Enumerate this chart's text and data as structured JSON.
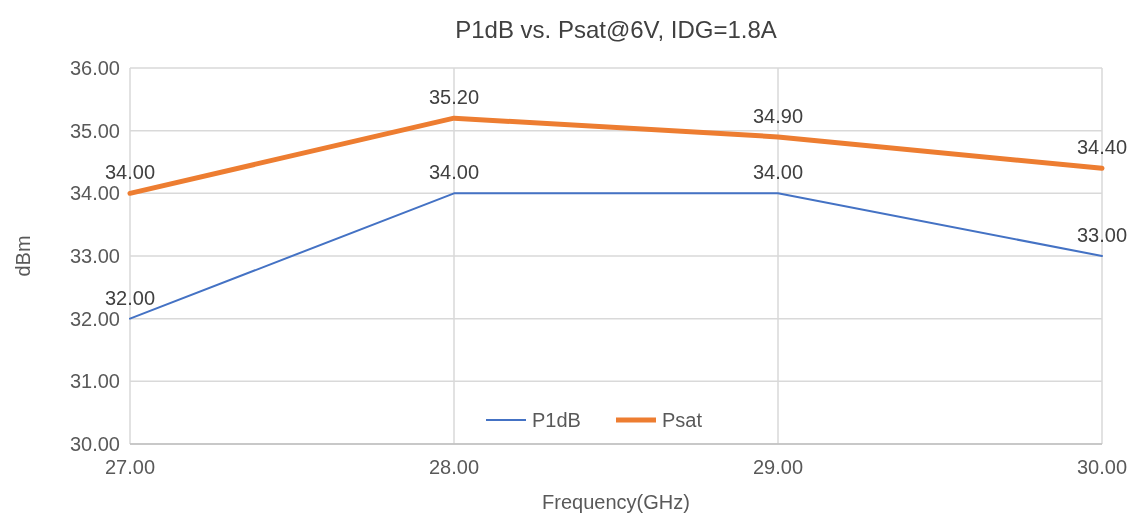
{
  "chart_data": {
    "type": "line",
    "title": "P1dB vs. Psat@6V, IDG=1.8A",
    "xlabel": "Frequency(GHz)",
    "ylabel": "dBm",
    "x": [
      27,
      28,
      29,
      30
    ],
    "xlim": [
      27,
      30
    ],
    "xticks": [
      {
        "value": 27,
        "label": "27.00"
      },
      {
        "value": 28,
        "label": "28.00"
      },
      {
        "value": 29,
        "label": "29.00"
      },
      {
        "value": 30,
        "label": "30.00"
      }
    ],
    "ylim": [
      30,
      36
    ],
    "yticks": [
      {
        "value": 30,
        "label": "30.00"
      },
      {
        "value": 31,
        "label": "31.00"
      },
      {
        "value": 32,
        "label": "32.00"
      },
      {
        "value": 33,
        "label": "33.00"
      },
      {
        "value": 34,
        "label": "34.00"
      },
      {
        "value": 35,
        "label": "35.00"
      },
      {
        "value": 36,
        "label": "36.00"
      }
    ],
    "series": [
      {
        "name": "P1dB",
        "color": "#4472c4",
        "values": [
          32,
          34,
          34,
          33
        ],
        "value_labels": [
          "32.00",
          "34.00",
          "34.00",
          "33.00"
        ]
      },
      {
        "name": "Psat",
        "color": "#ed7d31",
        "values": [
          34,
          35.2,
          34.9,
          34.4
        ],
        "value_labels": [
          "34.00",
          "35.20",
          "34.90",
          "34.40"
        ]
      }
    ],
    "grid": true,
    "legend": "bottom",
    "marker": "none",
    "line_style": "solid"
  }
}
